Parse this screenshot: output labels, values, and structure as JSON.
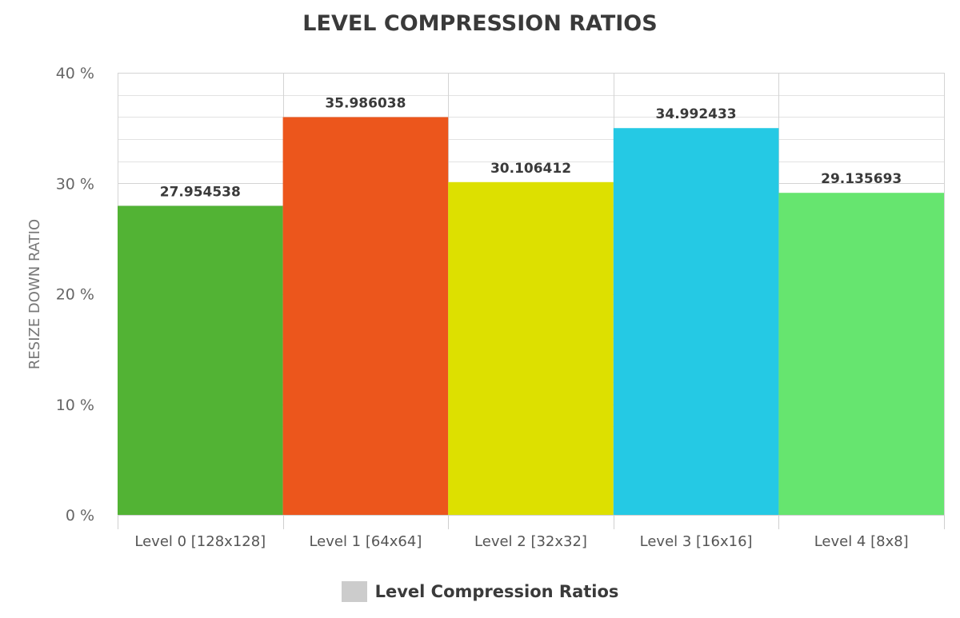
{
  "chart_data": {
    "type": "bar",
    "title": "LEVEL COMPRESSION RATIOS",
    "ylabel": "RESIZE DOWN RATIO",
    "xlabel": "",
    "ylim": [
      0,
      40
    ],
    "yticks": [
      0,
      10,
      20,
      30,
      40
    ],
    "ytick_labels": [
      "0 %",
      "10 %",
      "20 %",
      "30 %",
      "40 %"
    ],
    "grid": true,
    "legend_position": "bottom-center",
    "categories": [
      "Level 0 [128x128]",
      "Level 1 [64x64]",
      "Level 2 [32x32]",
      "Level 3 [16x16]",
      "Level 4 [8x8]"
    ],
    "series": [
      {
        "name": "Level Compression Ratios",
        "values": [
          27.954538,
          35.986038,
          30.106412,
          34.992433,
          29.135693
        ],
        "value_labels": [
          "27.954538",
          "35.986038",
          "30.106412",
          "34.992433",
          "29.135693"
        ],
        "colors": [
          "#52b334",
          "#ec561c",
          "#dde000",
          "#25c9e4",
          "#66e56f"
        ]
      }
    ],
    "legend_color": "#cccccc"
  }
}
